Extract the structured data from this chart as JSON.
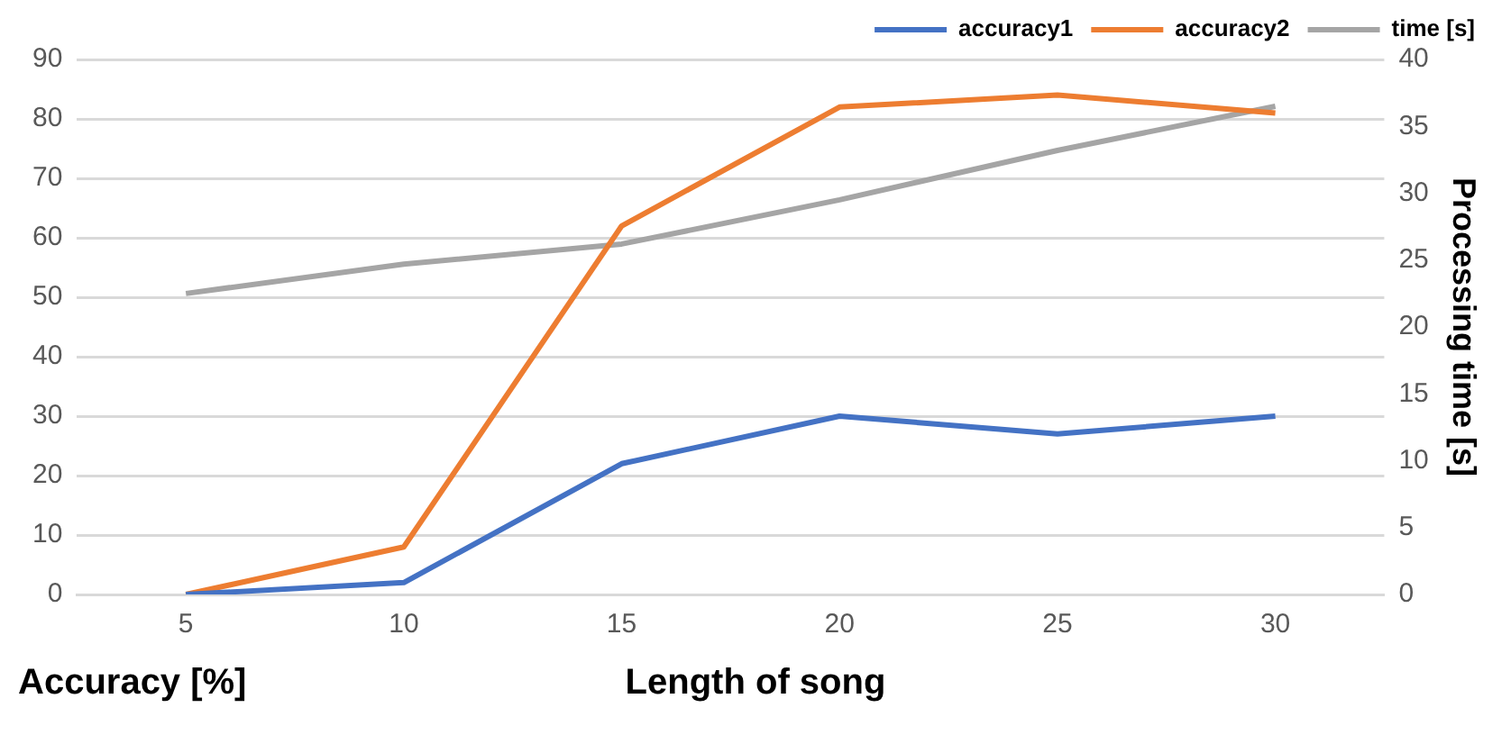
{
  "chart_data": {
    "type": "line",
    "categories": [
      "5",
      "10",
      "15",
      "20",
      "25",
      "30"
    ],
    "xlabel": "Length of song",
    "ylabel": "Accuracy [%]",
    "y2label": "Processing time [s]",
    "series": [
      {
        "name": "accuracy1",
        "color": "#4472c4",
        "values": [
          0,
          2,
          22,
          30,
          27,
          30
        ]
      },
      {
        "name": "accuracy2",
        "color": "#ed7d31",
        "values": [
          0,
          8,
          62,
          82,
          84,
          81
        ]
      },
      {
        "name": "time [s]",
        "color": "#a5a5a5",
        "axis": "y2",
        "values": [
          22.5,
          24.7,
          26.2,
          29.5,
          33.2,
          36.5
        ]
      }
    ],
    "ylim": [
      0,
      90
    ],
    "yticks": [
      0,
      10,
      20,
      30,
      40,
      50,
      60,
      70,
      80,
      90
    ],
    "y2lim": [
      0,
      40
    ],
    "y2ticks": [
      0,
      5,
      10,
      15,
      20,
      25,
      30,
      35,
      40
    ],
    "grid": "y",
    "legend": "top right",
    "marker": "none",
    "line_style": "solid"
  }
}
